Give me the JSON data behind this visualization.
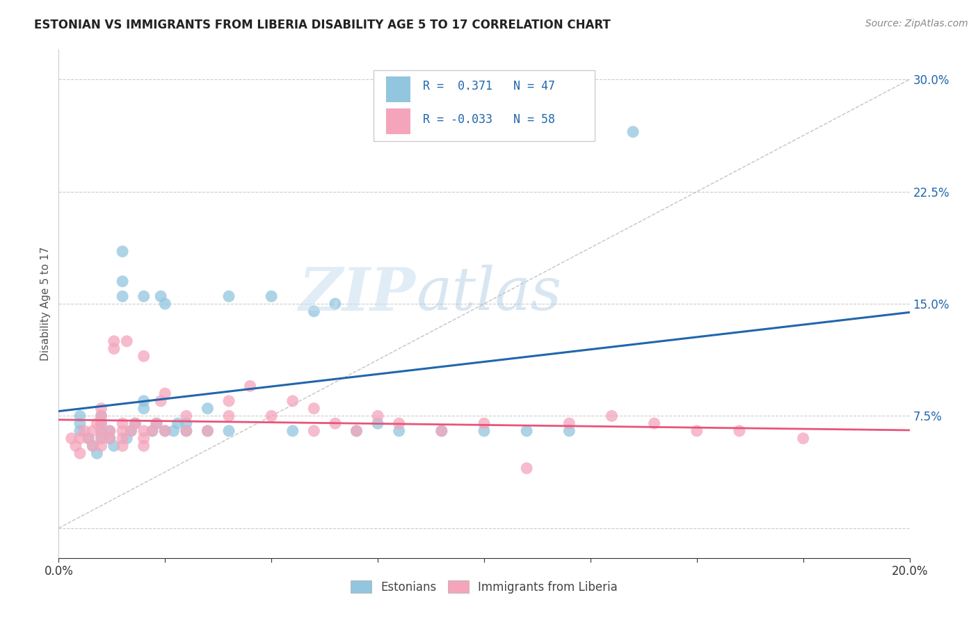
{
  "title": "ESTONIAN VS IMMIGRANTS FROM LIBERIA DISABILITY AGE 5 TO 17 CORRELATION CHART",
  "source": "Source: ZipAtlas.com",
  "ylabel": "Disability Age 5 to 17",
  "xlabel": "",
  "xlim": [
    0,
    0.2
  ],
  "ylim": [
    -0.02,
    0.32
  ],
  "xticks": [
    0.0,
    0.025,
    0.05,
    0.075,
    0.1,
    0.125,
    0.15,
    0.175,
    0.2
  ],
  "yticks": [
    0.0,
    0.075,
    0.15,
    0.225,
    0.3
  ],
  "ytick_labels": [
    "",
    "7.5%",
    "15.0%",
    "22.5%",
    "30.0%"
  ],
  "xtick_labels_show": [
    "0.0%",
    "",
    "",
    "",
    "",
    "",
    "",
    "",
    "20.0%"
  ],
  "blue_color": "#92c5de",
  "pink_color": "#f4a5bb",
  "blue_line_color": "#2166ac",
  "pink_line_color": "#e8547a",
  "R_blue": 0.371,
  "N_blue": 47,
  "R_pink": -0.033,
  "N_pink": 58,
  "watermark_zip": "ZIP",
  "watermark_atlas": "atlas",
  "blue_x": [
    0.005,
    0.005,
    0.005,
    0.007,
    0.008,
    0.009,
    0.01,
    0.01,
    0.01,
    0.01,
    0.012,
    0.012,
    0.013,
    0.015,
    0.015,
    0.015,
    0.016,
    0.017,
    0.018,
    0.02,
    0.02,
    0.02,
    0.022,
    0.023,
    0.024,
    0.025,
    0.025,
    0.027,
    0.028,
    0.03,
    0.03,
    0.035,
    0.035,
    0.04,
    0.04,
    0.05,
    0.055,
    0.06,
    0.065,
    0.07,
    0.075,
    0.08,
    0.09,
    0.1,
    0.11,
    0.12,
    0.135
  ],
  "blue_y": [
    0.065,
    0.07,
    0.075,
    0.06,
    0.055,
    0.05,
    0.06,
    0.065,
    0.07,
    0.075,
    0.06,
    0.065,
    0.055,
    0.155,
    0.165,
    0.185,
    0.06,
    0.065,
    0.07,
    0.08,
    0.085,
    0.155,
    0.065,
    0.07,
    0.155,
    0.065,
    0.15,
    0.065,
    0.07,
    0.065,
    0.07,
    0.065,
    0.08,
    0.065,
    0.155,
    0.155,
    0.065,
    0.145,
    0.15,
    0.065,
    0.07,
    0.065,
    0.065,
    0.065,
    0.065,
    0.065,
    0.265
  ],
  "pink_x": [
    0.003,
    0.004,
    0.005,
    0.005,
    0.006,
    0.007,
    0.008,
    0.008,
    0.009,
    0.01,
    0.01,
    0.01,
    0.01,
    0.01,
    0.01,
    0.012,
    0.012,
    0.013,
    0.013,
    0.015,
    0.015,
    0.015,
    0.015,
    0.016,
    0.017,
    0.018,
    0.02,
    0.02,
    0.02,
    0.02,
    0.022,
    0.023,
    0.024,
    0.025,
    0.025,
    0.03,
    0.03,
    0.035,
    0.04,
    0.04,
    0.045,
    0.05,
    0.055,
    0.06,
    0.06,
    0.065,
    0.07,
    0.075,
    0.08,
    0.09,
    0.1,
    0.11,
    0.12,
    0.13,
    0.14,
    0.15,
    0.16,
    0.175
  ],
  "pink_y": [
    0.06,
    0.055,
    0.05,
    0.06,
    0.065,
    0.06,
    0.055,
    0.065,
    0.07,
    0.055,
    0.06,
    0.065,
    0.07,
    0.075,
    0.08,
    0.06,
    0.065,
    0.12,
    0.125,
    0.055,
    0.06,
    0.065,
    0.07,
    0.125,
    0.065,
    0.07,
    0.055,
    0.06,
    0.065,
    0.115,
    0.065,
    0.07,
    0.085,
    0.065,
    0.09,
    0.065,
    0.075,
    0.065,
    0.075,
    0.085,
    0.095,
    0.075,
    0.085,
    0.065,
    0.08,
    0.07,
    0.065,
    0.075,
    0.07,
    0.065,
    0.07,
    0.04,
    0.07,
    0.075,
    0.07,
    0.065,
    0.065,
    0.06
  ]
}
